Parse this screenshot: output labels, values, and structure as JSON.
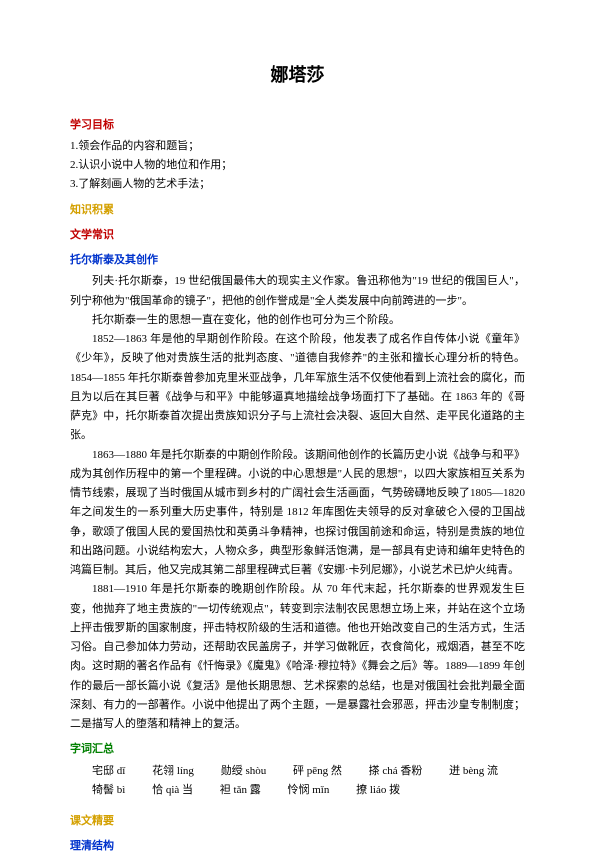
{
  "title": "娜塔莎",
  "sections": {
    "goals_head": "学习目标",
    "goals": [
      "1.领会作品的内容和题旨；",
      "2.认识小说中人物的地位和作用；",
      "3.了解刻画人物的艺术手法；"
    ],
    "knowledge_head": "知识积累",
    "lit_head": "文学常识",
    "author_head": "托尔斯泰及其创作",
    "p1": "列夫·托尔斯泰，19 世纪俄国最伟大的现实主义作家。鲁迅称他为\"19 世纪的俄国巨人\"，列宁称他为\"俄国革命的镜子\"，把他的创作誉成是\"全人类发展中向前跨进的一步\"。",
    "p2": "托尔斯泰一生的思想一直在变化，他的创作也可分为三个阶段。",
    "p3": "1852—1863 年是他的早期创作阶段。在这个阶段，他发表了成名作自传体小说《童年》《少年》，反映了他对贵族生活的批判态度、\"道德自我修养\"的主张和擅长心理分析的特色。1854—1855 年托尔斯泰曾参加克里米亚战争，几年军旅生活不仅使他看到上流社会的腐化，而且为以后在其巨著《战争与和平》中能够逼真地描绘战争场面打下了基础。在 1863 年的《哥萨克》中，托尔斯泰首次提出贵族知识分子与上流社会决裂、返回大自然、走平民化道路的主张。",
    "p4": "1863—1880 年是托尔斯泰的中期创作阶段。该期间他创作的长篇历史小说《战争与和平》成为其创作历程中的第一个里程碑。小说的中心思想是\"人民的思想\"，以四大家族相互关系为情节线索，展现了当时俄国从城市到乡村的广阔社会生活画面，气势磅礴地反映了1805—1820 年之间发生的一系列重大历史事件，特别是 1812 年库图佐夫领导的反对拿破仑入侵的卫国战争，歌颂了俄国人民的爱国热忱和英勇斗争精神，也探讨俄国前途和命运，特别是贵族的地位和出路问题。小说结构宏大，人物众多，典型形象鲜活饱满，是一部具有史诗和编年史特色的鸿篇巨制。其后，他又完成其第二部里程碑式巨著《安娜·卡列尼娜》，小说艺术已炉火纯青。",
    "p5": "1881—1910 年是托尔斯泰的晚期创作阶段。从 70 年代末起，托尔斯泰的世界观发生巨变，他抛弃了地主贵族的\"一切传统观点\"，转变到宗法制农民思想立场上来，并站在这个立场上抨击俄罗斯的国家制度，抨击特权阶级的生活和道德。他也开始改变自己的生活方式，生活习俗。自己参加体力劳动，还帮助农民盖房子，并学习做靴匠，衣食简化，戒烟酒，甚至不吃肉。这时期的著名作品有《忏悔录》《魔鬼》《哈泽·穆拉特》《舞会之后》等。1889—1899 年创作的最后一部长篇小说《复活》是他长期思想、艺术探索的总结，也是对俄国社会批判最全面深刻、有力的一部著作。小说中他提出了两个主题，一是暴露社会邪恶，抨击沙皇专制制度；二是描写人的堕落和精神上的复活。",
    "vocab_head": "字词汇总",
    "vocab": [
      [
        {
          "w": "宅邸",
          "r": "dǐ"
        },
        {
          "w": "花翎",
          "r": "líng"
        },
        {
          "w": "勋绶",
          "r": "shòu"
        },
        {
          "w": "砰",
          "r": "pēng 然"
        },
        {
          "w": "搽",
          "r": "chá 香粉"
        },
        {
          "w": "迸",
          "r": "bèng 流"
        }
      ],
      [
        {
          "w": "犄髻",
          "r": "bì"
        },
        {
          "w": "恰",
          "r": "qià 当"
        },
        {
          "w": "袒",
          "r": "tǎn 露"
        },
        {
          "w": "怜悯",
          "r": "mǐn"
        },
        {
          "w": "撩",
          "r": "liáo 拨"
        }
      ]
    ],
    "essentials_head": "课文精要",
    "structure_head": "理清结构"
  },
  "colors": {
    "red": "#c00000",
    "yellow": "#d4a000",
    "blue": "#0033cc",
    "green": "#008000"
  }
}
